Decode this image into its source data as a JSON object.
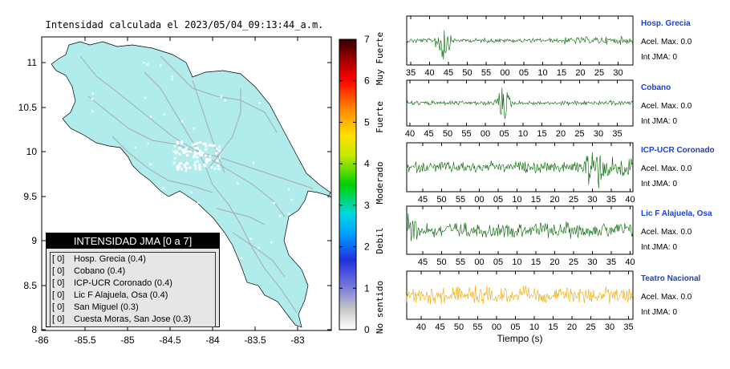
{
  "map": {
    "title": "Intensidad calculada el 2023/05/04_09:13:44_a.m.",
    "lat_ticks": [
      "11",
      "10.5",
      "10",
      "9.5",
      "9",
      "8.5",
      "8"
    ],
    "lon_ticks": [
      "-86",
      "-85.5",
      "-85",
      "-84.5",
      "-84",
      "-83.5",
      "-83"
    ],
    "colors": {
      "land": "#b0ecec",
      "roads": "#a8a8a8",
      "border": "#000000"
    }
  },
  "colorbar": {
    "ticks": [
      "0",
      "1",
      "2",
      "3",
      "4",
      "5",
      "6",
      "7"
    ],
    "categories": [
      "No sentido",
      "Debil",
      "Moderado",
      "Fuerte",
      "Muy Fuerte"
    ]
  },
  "legend": {
    "title": "INTENSIDAD JMA [0 a 7]",
    "items": [
      {
        "bracket": "[ 0]",
        "label": "Hosp. Grecia (0.4)"
      },
      {
        "bracket": "[ 0]",
        "label": "Cobano (0.4)"
      },
      {
        "bracket": "[ 0]",
        "label": "ICP-UCR Coronado (0.4)"
      },
      {
        "bracket": "[ 0]",
        "label": "Lic F Alajuela, Osa (0.4)"
      },
      {
        "bracket": "[ 0]",
        "label": "San Miguel (0.3)"
      },
      {
        "bracket": "[ 0]",
        "label": "Cuesta Moras, San Jose (0.3)"
      }
    ]
  },
  "traces": {
    "xlabel": "Tiempo (s)",
    "stations": [
      {
        "name": "Hosp. Grecia",
        "acel": "Acel. Max. 0.0",
        "jma": "Int JMA: 0",
        "color": "#006400",
        "ticks": [
          "35",
          "40",
          "45",
          "50",
          "55",
          "00",
          "05",
          "10",
          "15",
          "20",
          "25",
          "30"
        ]
      },
      {
        "name": "Cobano",
        "acel": "Acel. Max. 0.0",
        "jma": "Int JMA: 0",
        "color": "#006400",
        "ticks": [
          "40",
          "45",
          "50",
          "55",
          "00",
          "05",
          "10",
          "15",
          "20",
          "25",
          "30",
          "35"
        ]
      },
      {
        "name": "ICP-UCR Coronado",
        "acel": "Acel. Max. 0.0",
        "jma": "Int JMA: 0",
        "color": "#006400",
        "ticks": [
          "45",
          "50",
          "55",
          "00",
          "05",
          "10",
          "15",
          "20",
          "25",
          "30",
          "35",
          "40"
        ]
      },
      {
        "name": "Lic F Alajuela, Osa",
        "acel": "Acel. Max. 0.0",
        "jma": "Int JMA: 0",
        "color": "#006400",
        "ticks": [
          "45",
          "50",
          "55",
          "00",
          "05",
          "10",
          "15",
          "20",
          "25",
          "30",
          "35",
          "40"
        ]
      },
      {
        "name": "Teatro Nacional",
        "acel": "Acel. Max. 0.0",
        "jma": "Int JMA: 0",
        "color": "#f0a800",
        "ticks": [
          "40",
          "45",
          "50",
          "55",
          "00",
          "05",
          "10",
          "15",
          "20",
          "25",
          "30",
          "35"
        ]
      }
    ]
  },
  "chart_data": [
    {
      "type": "heatmap",
      "title": "Intensidad calculada el 2023/05/04_09:13:44_a.m.",
      "xlim": [
        -86,
        -82.6
      ],
      "ylim": [
        8,
        11.3
      ],
      "colorbar_range": [
        0,
        7
      ],
      "stations": [
        {
          "name": "Hosp. Grecia",
          "intensity": 0.4
        },
        {
          "name": "Cobano",
          "intensity": 0.4
        },
        {
          "name": "ICP-UCR Coronado",
          "intensity": 0.4
        },
        {
          "name": "Lic F Alajuela, Osa",
          "intensity": 0.4
        },
        {
          "name": "San Miguel",
          "intensity": 0.3
        },
        {
          "name": "Cuesta Moras, San Jose",
          "intensity": 0.3
        }
      ]
    },
    {
      "type": "line",
      "xlabel": "Tiempo (s)",
      "series": [
        {
          "name": "Hosp. Grecia",
          "max_acceleration": 0.0,
          "jma_intensity": 0
        },
        {
          "name": "Cobano",
          "max_acceleration": 0.0,
          "jma_intensity": 0
        },
        {
          "name": "ICP-UCR Coronado",
          "max_acceleration": 0.0,
          "jma_intensity": 0
        },
        {
          "name": "Lic F Alajuela, Osa",
          "max_acceleration": 0.0,
          "jma_intensity": 0
        },
        {
          "name": "Teatro Nacional",
          "max_acceleration": 0.0,
          "jma_intensity": 0
        }
      ]
    }
  ]
}
